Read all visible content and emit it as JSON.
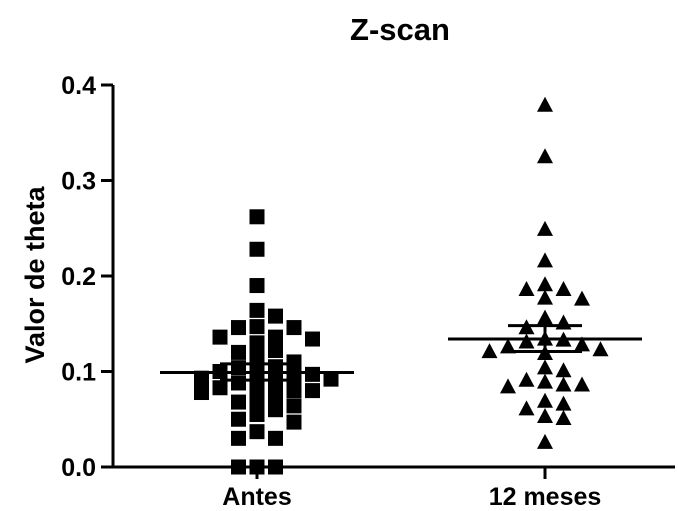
{
  "chart_data": {
    "type": "scatter",
    "title": "Z-scan",
    "xlabel": "",
    "ylabel": "Valor de theta",
    "categories": [
      "Antes",
      "12 meses"
    ],
    "ylim": [
      0.0,
      0.4
    ],
    "yticks": [
      "0.0",
      "0.1",
      "0.2",
      "0.3",
      "0.4"
    ],
    "grid": false,
    "series": [
      {
        "category": "Antes",
        "marker": "square",
        "mean": 0.099,
        "sem_low": 0.091,
        "sem_high": 0.108,
        "values": [
          0.262,
          0.228,
          0.19,
          0.164,
          0.158,
          0.147,
          0.146,
          0.146,
          0.136,
          0.136,
          0.134,
          0.13,
          0.122,
          0.12,
          0.115,
          0.11,
          0.105,
          0.104,
          0.1,
          0.1,
          0.097,
          0.095,
          0.093,
          0.092,
          0.09,
          0.088,
          0.085,
          0.083,
          0.08,
          0.08,
          0.078,
          0.075,
          0.07,
          0.068,
          0.064,
          0.06,
          0.055,
          0.05,
          0.047,
          0.037,
          0.03,
          0.03,
          0.0,
          0.0,
          0.0
        ]
      },
      {
        "category": "12 meses",
        "marker": "triangle",
        "mean": 0.134,
        "sem_low": 0.121,
        "sem_high": 0.148,
        "values": [
          0.378,
          0.324,
          0.248,
          0.215,
          0.19,
          0.185,
          0.185,
          0.176,
          0.175,
          0.155,
          0.15,
          0.145,
          0.133,
          0.132,
          0.13,
          0.127,
          0.125,
          0.122,
          0.12,
          0.118,
          0.103,
          0.1,
          0.09,
          0.088,
          0.085,
          0.085,
          0.083,
          0.068,
          0.065,
          0.06,
          0.052,
          0.05,
          0.025
        ]
      }
    ]
  }
}
